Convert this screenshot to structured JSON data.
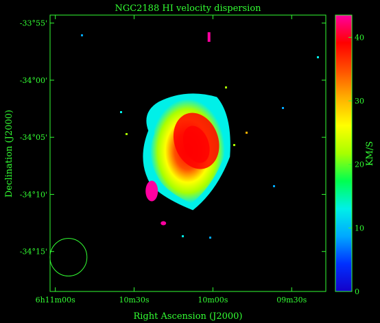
{
  "chart_data": {
    "type": "heatmap",
    "title": "NGC2188   HI velocity dispersion",
    "xlabel": "Right Ascension (J2000)",
    "ylabel": "Declination (J2000)",
    "colorbar_label": "KM/S",
    "x_ticks": [
      {
        "label": "6h11m00s",
        "ra_sec": 660
      },
      {
        "label": "10m30s",
        "ra_sec": 630
      },
      {
        "label": "10m00s",
        "ra_sec": 600
      },
      {
        "label": "09m30s",
        "ra_sec": 570
      }
    ],
    "y_ticks": [
      {
        "label": "-33°55'",
        "dec_arcmin": -2035
      },
      {
        "label": "-34°00'",
        "dec_arcmin": -2040
      },
      {
        "label": "-34°05'",
        "dec_arcmin": -2045
      },
      {
        "label": "-34°10'",
        "dec_arcmin": -2050
      },
      {
        "label": "-34°15'",
        "dec_arcmin": -2055
      }
    ],
    "xlim_ra_sec": [
      662,
      557
    ],
    "ylim_dec_arcmin": [
      -2058.5,
      -2034.3
    ],
    "colorbar": {
      "min": 0,
      "max": 43.5,
      "ticks": [
        0,
        10,
        20,
        30,
        40
      ]
    },
    "colormap": [
      "#1400c8",
      "#0030ff",
      "#00a8ff",
      "#00f0e8",
      "#00ff50",
      "#a8ff00",
      "#ffff00",
      "#ffb000",
      "#ff5000",
      "#ff0000",
      "#ff00a0"
    ],
    "beam": {
      "ra_sec": 655,
      "dec_arcmin": -2055.5,
      "major_arcmin": 3.3,
      "minor_arcmin": 1.8
    },
    "galaxy": {
      "center_ra_sec": 605,
      "center_dec_arcmin": -2045.5,
      "peak_dispersion": 40,
      "edge_dispersion": 14
    }
  },
  "colors": {
    "axis": "#33ff33",
    "background": "#000000"
  }
}
